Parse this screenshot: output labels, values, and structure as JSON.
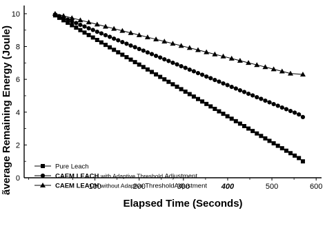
{
  "chart_data": {
    "type": "line",
    "xlabel": "Elapsed Time (Seconds)",
    "ylabel": "Average Remaining Energy (Joule)",
    "ylabel_display": "ãverage Remaining Energy (Joule)",
    "xlim": [
      -60,
      620
    ],
    "ylim": [
      0,
      10.5
    ],
    "x_ticks": [
      "100",
      "200",
      "300",
      "400",
      "500",
      "600"
    ],
    "y_ticks": [
      "0",
      "2",
      "4",
      "6",
      "8",
      "10"
    ],
    "grid": false,
    "legend_position": "bottom-left",
    "series": [
      {
        "name": "Pure Leach",
        "legend_marker": "square",
        "legend_prefix": "—■—",
        "legend_plain": "Pure Leach",
        "legend_bold": "",
        "legend_rest": "",
        "color": "#000000",
        "x": [
          10,
          19.5,
          29,
          38.5,
          48,
          57.5,
          67,
          76.5,
          86,
          95.5,
          105,
          114.5,
          124,
          133.5,
          143,
          152.5,
          162,
          171.5,
          181,
          190.5,
          200,
          209.5,
          219,
          228.5,
          238,
          247.5,
          257,
          266.5,
          276,
          285.5,
          295,
          304.5,
          314,
          323.5,
          333,
          342.5,
          352,
          361.5,
          371,
          380.5,
          390,
          399.5,
          409,
          418.5,
          428,
          437.5,
          447,
          456.5,
          466,
          475.5,
          485,
          494.5,
          504,
          513.5,
          523,
          532.5,
          542,
          551.5,
          561,
          570
        ],
        "y": [
          9.9,
          9.75,
          9.6,
          9.45,
          9.3,
          9.15,
          9.0,
          8.85,
          8.7,
          8.55,
          8.4,
          8.25,
          8.1,
          7.95,
          7.8,
          7.65,
          7.5,
          7.35,
          7.2,
          7.05,
          6.9,
          6.75,
          6.6,
          6.45,
          6.3,
          6.15,
          6.0,
          5.85,
          5.7,
          5.55,
          5.4,
          5.25,
          5.1,
          4.95,
          4.8,
          4.65,
          4.5,
          4.35,
          4.2,
          4.05,
          3.9,
          3.75,
          3.6,
          3.45,
          3.3,
          3.15,
          3.0,
          2.85,
          2.7,
          2.55,
          2.4,
          2.25,
          2.1,
          1.95,
          1.8,
          1.65,
          1.5,
          1.35,
          1.2,
          1.0
        ]
      },
      {
        "name": "CAEM LEACH with Adaptive Threshold Adjustment",
        "legend_marker": "circle",
        "legend_prefix": "●—",
        "legend_plain": "",
        "legend_bold": "CAEM LEACH",
        "legend_rest_small": "with Adaptive Threshold",
        "legend_rest": "Adjustment",
        "color": "#000000",
        "x": [
          10,
          19.5,
          29,
          38.5,
          48,
          57.5,
          67,
          76.5,
          86,
          95.5,
          105,
          114.5,
          124,
          133.5,
          143,
          152.5,
          162,
          171.5,
          181,
          190.5,
          200,
          209.5,
          219,
          228.5,
          238,
          247.5,
          257,
          266.5,
          276,
          285.5,
          295,
          304.5,
          314,
          323.5,
          333,
          342.5,
          352,
          361.5,
          371,
          380.5,
          390,
          399.5,
          409,
          418.5,
          428,
          437.5,
          447,
          456.5,
          466,
          475.5,
          485,
          494.5,
          504,
          513.5,
          523,
          532.5,
          542,
          551.5,
          561,
          570
        ],
        "y": [
          9.95,
          9.85,
          9.74,
          9.64,
          9.53,
          9.43,
          9.32,
          9.22,
          9.11,
          9.01,
          8.9,
          8.8,
          8.69,
          8.59,
          8.48,
          8.38,
          8.27,
          8.17,
          8.06,
          7.96,
          7.85,
          7.75,
          7.64,
          7.54,
          7.43,
          7.33,
          7.22,
          7.12,
          7.01,
          6.91,
          6.8,
          6.7,
          6.59,
          6.49,
          6.38,
          6.28,
          6.17,
          6.07,
          5.96,
          5.86,
          5.75,
          5.65,
          5.54,
          5.44,
          5.33,
          5.23,
          5.12,
          5.02,
          4.91,
          4.81,
          4.7,
          4.6,
          4.49,
          4.39,
          4.28,
          4.18,
          4.07,
          3.97,
          3.86,
          3.7
        ]
      },
      {
        "name": "CAEM LEACH without Adaptive Threshold Adjustment",
        "legend_marker": "triangle",
        "legend_prefix": "-A-",
        "legend_plain": "",
        "legend_bold": "CAEM LEACH",
        "legend_rest_small": "without Adaptive",
        "legend_rest": "ThresholdAdjustment",
        "color": "#000000",
        "x": [
          10,
          29,
          48,
          67,
          86,
          105,
          124,
          143,
          162,
          181,
          200,
          219,
          238,
          257,
          276,
          295,
          314,
          333,
          352,
          371,
          390,
          409,
          428,
          447,
          466,
          485,
          504,
          523,
          542,
          570
        ],
        "y": [
          10.0,
          9.87,
          9.74,
          9.61,
          9.48,
          9.35,
          9.22,
          9.09,
          8.96,
          8.83,
          8.7,
          8.57,
          8.44,
          8.31,
          8.18,
          8.05,
          7.92,
          7.79,
          7.66,
          7.53,
          7.4,
          7.27,
          7.14,
          7.01,
          6.88,
          6.75,
          6.62,
          6.49,
          6.36,
          6.3
        ]
      }
    ]
  }
}
